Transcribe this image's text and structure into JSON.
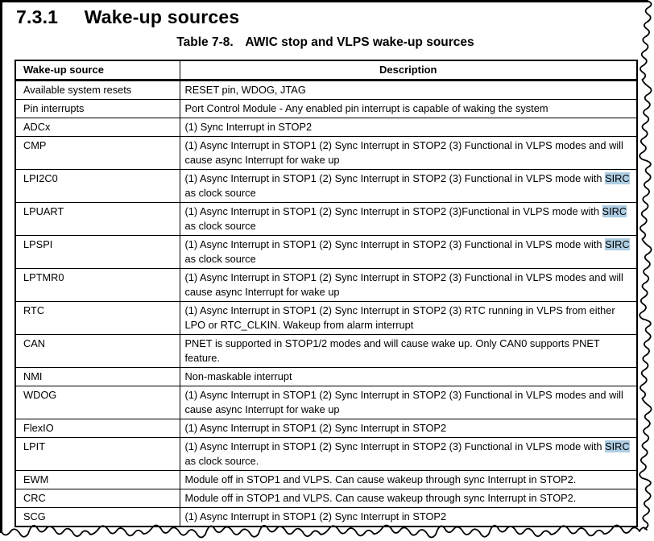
{
  "page": {
    "background": "#ffffff",
    "text_color": "#000000"
  },
  "section": {
    "number": "7.3.1",
    "title": "Wake-up sources"
  },
  "table": {
    "label": "Table 7-8.",
    "caption": "AWIC stop and VLPS wake-up sources",
    "columns": [
      "Wake-up source",
      "Description"
    ],
    "highlight_color": "#aecde3",
    "rows": [
      {
        "source": "Available system resets",
        "description": [
          {
            "t": "RESET pin, WDOG, JTAG"
          }
        ]
      },
      {
        "source": "Pin interrupts",
        "description": [
          {
            "t": "Port Control Module - Any enabled pin interrupt is capable of waking the system"
          }
        ]
      },
      {
        "source": "ADCx",
        "description": [
          {
            "t": "(1) Sync Interrupt in STOP2"
          }
        ]
      },
      {
        "source": "CMP",
        "description": [
          {
            "t": "(1) Async Interrupt in STOP1 (2) Sync Interrupt in STOP2 (3) Functional in VLPS modes and will cause async Interrupt for wake up"
          }
        ]
      },
      {
        "source": "LPI2C0",
        "description": [
          {
            "t": "(1) Async Interrupt in STOP1 (2) Sync Interrupt in STOP2 (3) Functional in VLPS mode with "
          },
          {
            "t": "SIRC",
            "hl": true
          },
          {
            "t": " as clock source"
          }
        ]
      },
      {
        "source": "LPUART",
        "description": [
          {
            "t": "(1) Async Interrupt in STOP1 (2) Sync Interrupt in STOP2 (3)Functional in VLPS mode with "
          },
          {
            "t": "SIRC",
            "hl": true
          },
          {
            "t": " as clock source"
          }
        ]
      },
      {
        "source": "LPSPI",
        "description": [
          {
            "t": "(1) Async Interrupt in STOP1 (2) Sync Interrupt in STOP2 (3) Functional in VLPS mode with "
          },
          {
            "t": "SIRC",
            "hl": true
          },
          {
            "t": " as clock source"
          }
        ]
      },
      {
        "source": "LPTMR0",
        "description": [
          {
            "t": "(1) Async Interrupt in STOP1 (2) Sync Interrupt in STOP2 (3) Functional in VLPS modes and will cause async Interrupt for wake up"
          }
        ]
      },
      {
        "source": "RTC",
        "description": [
          {
            "t": "(1) Async Interrupt in STOP1 (2) Sync Interrupt in STOP2 (3) RTC running in VLPS from either LPO or RTC_CLKIN. Wakeup from alarm interrupt"
          }
        ]
      },
      {
        "source": "CAN",
        "description": [
          {
            "t": "PNET is supported in STOP1/2 modes and will cause wake up. Only CAN0 supports PNET feature."
          }
        ]
      },
      {
        "source": "NMI",
        "description": [
          {
            "t": "Non-maskable interrupt"
          }
        ]
      },
      {
        "source": "WDOG",
        "description": [
          {
            "t": "(1) Async Interrupt in STOP1 (2) Sync Interrupt in STOP2 (3) Functional in VLPS modes and will cause async Interrupt for wake up"
          }
        ]
      },
      {
        "source": "FlexIO",
        "description": [
          {
            "t": "(1) Async Interrupt in STOP1 (2) Sync Interrupt in STOP2"
          }
        ]
      },
      {
        "source": "LPIT",
        "description": [
          {
            "t": "(1) Async Interrupt in STOP1 (2) Sync Interrupt in STOP2 (3) Functional in VLPS mode with "
          },
          {
            "t": "SIRC",
            "hl": true
          },
          {
            "t": " as clock source."
          }
        ]
      },
      {
        "source": "EWM",
        "description": [
          {
            "t": "Module off in STOP1 and VLPS. Can cause wakeup through sync Interrupt in STOP2."
          }
        ]
      },
      {
        "source": "CRC",
        "description": [
          {
            "t": "Module off in STOP1 and VLPS. Can cause wakeup through sync Interrupt in STOP2."
          }
        ]
      },
      {
        "source": "SCG",
        "description": [
          {
            "t": "(1) Async Interrupt in STOP1 (2) Sync Interrupt in STOP2"
          }
        ]
      }
    ]
  }
}
